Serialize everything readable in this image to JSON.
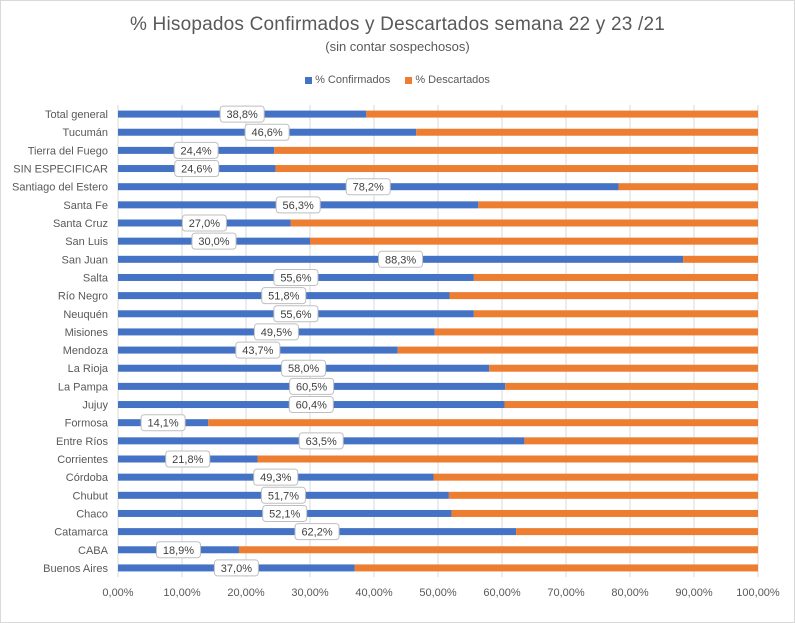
{
  "chart_data": {
    "type": "bar",
    "orientation": "horizontal",
    "stacked": "percent",
    "title": "% Hisopados Confirmados y Descartados semana 22 y 23 /21",
    "subtitle": "(sin contar sospechosos)",
    "legend_position": "top",
    "categories": [
      "Total general",
      "Tucumán",
      "Tierra del Fuego",
      "SIN ESPECIFICAR",
      "Santiago del Estero",
      "Santa Fe",
      "Santa Cruz",
      "San Luis",
      "San Juan",
      "Salta",
      "Río Negro",
      "Neuquén",
      "Misiones",
      "Mendoza",
      "La Rioja",
      "La Pampa",
      "Jujuy",
      "Formosa",
      "Entre Ríos",
      "Corrientes",
      "Córdoba",
      "Chubut",
      "Chaco",
      "Catamarca",
      "CABA",
      "Buenos Aires"
    ],
    "series": [
      {
        "name": "% Confirmados",
        "color": "#4472c4",
        "values": [
          38.8,
          46.6,
          24.4,
          24.6,
          78.2,
          56.3,
          27.0,
          30.0,
          88.3,
          55.6,
          51.8,
          55.6,
          49.5,
          43.7,
          58.0,
          60.5,
          60.4,
          14.1,
          63.5,
          21.8,
          49.3,
          51.7,
          52.1,
          62.2,
          18.9,
          37.0
        ]
      },
      {
        "name": "% Descartados",
        "color": "#ed7d31",
        "values": [
          61.2,
          53.4,
          75.6,
          75.4,
          21.8,
          43.7,
          73.0,
          70.0,
          11.7,
          44.4,
          48.2,
          44.4,
          50.5,
          56.3,
          42.0,
          39.5,
          39.6,
          85.9,
          36.5,
          78.2,
          50.7,
          48.3,
          47.9,
          37.8,
          81.1,
          63.0
        ]
      }
    ],
    "data_labels": [
      "38,8%",
      "46,6%",
      "24,4%",
      "24,6%",
      "78,2%",
      "56,3%",
      "27,0%",
      "30,0%",
      "88,3%",
      "55,6%",
      "51,8%",
      "55,6%",
      "49,5%",
      "43,7%",
      "58,0%",
      "60,5%",
      "60,4%",
      "14,1%",
      "63,5%",
      "21,8%",
      "49,3%",
      "51,7%",
      "52,1%",
      "62,2%",
      "18,9%",
      "37,0%"
    ],
    "x_ticks": [
      "0,00%",
      "10,00%",
      "20,00%",
      "30,00%",
      "40,00%",
      "50,00%",
      "60,00%",
      "70,00%",
      "80,00%",
      "90,00%",
      "100,00%"
    ],
    "xlim": [
      0,
      100
    ],
    "grid": true
  }
}
